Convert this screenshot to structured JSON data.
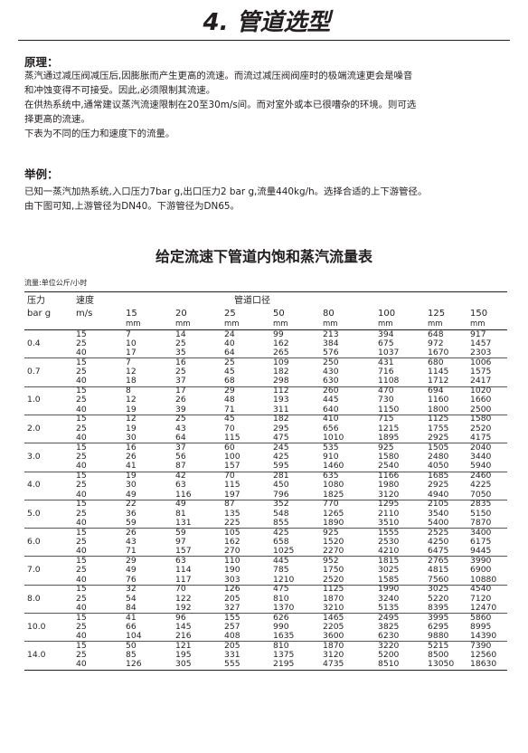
{
  "title": "4. 管道选型",
  "principle": {
    "heading": "原理：",
    "lines": [
      "蒸汽通过减压阀减压后,因膨胀而产生更高的流速。而流过减压阀阀座时的极端流速更会是噪音",
      "和冲蚀变得不可接受。因此,必须限制其流速。",
      "在供热系统中,通常建议蒸汽流速限制在20至30m/s间。而对室外或本已很嘈杂的环境。则可选",
      "择更高的流速。",
      "下表为不同的压力和速度下的流量。"
    ]
  },
  "example": {
    "heading": "举例：",
    "lines": [
      "已知一蒸汽加热系统,入口压力7bar g,出口压力2 bar g,流量440kg/h。选择合适的上下游管径。",
      "由下图可知,上游管径为DN40。下游管径为DN65。"
    ]
  },
  "table": {
    "title": "给定流速下管道内饱和蒸汽流量表",
    "unit_note": "流量:单位公斤/小时",
    "header": {
      "pressure": "压力",
      "pressure_unit": "bar g",
      "velocity": "速度",
      "velocity_unit": "m/s",
      "pipe": "管道口径",
      "sizes": [
        "15",
        "20",
        "25",
        "50",
        "80",
        "100",
        "125",
        "150"
      ],
      "size_unit": "mm"
    },
    "groups": [
      {
        "pressure": "0.4",
        "rows": [
          [
            "15",
            "7",
            "14",
            "24",
            "99",
            "213",
            "394",
            "648",
            "917"
          ],
          [
            "25",
            "10",
            "25",
            "40",
            "162",
            "384",
            "675",
            "972",
            "1457"
          ],
          [
            "40",
            "17",
            "35",
            "64",
            "265",
            "576",
            "1037",
            "1670",
            "2303"
          ]
        ]
      },
      {
        "pressure": "0.7",
        "rows": [
          [
            "15",
            "7",
            "16",
            "25",
            "109",
            "250",
            "431",
            "680",
            "1006"
          ],
          [
            "25",
            "12",
            "25",
            "45",
            "182",
            "430",
            "716",
            "1145",
            "1575"
          ],
          [
            "40",
            "18",
            "37",
            "68",
            "298",
            "630",
            "1108",
            "1712",
            "2417"
          ]
        ]
      },
      {
        "pressure": "1.0",
        "rows": [
          [
            "15",
            "8",
            "17",
            "29",
            "112",
            "260",
            "470",
            "694",
            "1020"
          ],
          [
            "25",
            "12",
            "26",
            "48",
            "193",
            "445",
            "730",
            "1160",
            "1660"
          ],
          [
            "40",
            "19",
            "39",
            "71",
            "311",
            "640",
            "1150",
            "1800",
            "2500"
          ]
        ]
      },
      {
        "pressure": "2.0",
        "rows": [
          [
            "15",
            "12",
            "25",
            "45",
            "182",
            "410",
            "715",
            "1125",
            "1580"
          ],
          [
            "25",
            "19",
            "43",
            "70",
            "295",
            "656",
            "1215",
            "1755",
            "2520"
          ],
          [
            "40",
            "30",
            "64",
            "115",
            "475",
            "1010",
            "1895",
            "2925",
            "4175"
          ]
        ]
      },
      {
        "pressure": "3.0",
        "rows": [
          [
            "15",
            "16",
            "37",
            "60",
            "245",
            "535",
            "925",
            "1505",
            "2040"
          ],
          [
            "25",
            "26",
            "56",
            "100",
            "425",
            "910",
            "1580",
            "2480",
            "3440"
          ],
          [
            "40",
            "41",
            "87",
            "157",
            "595",
            "1460",
            "2540",
            "4050",
            "5940"
          ]
        ]
      },
      {
        "pressure": "4.0",
        "rows": [
          [
            "15",
            "19",
            "42",
            "70",
            "281",
            "635",
            "1166",
            "1685",
            "2460"
          ],
          [
            "25",
            "30",
            "63",
            "115",
            "450",
            "1080",
            "1980",
            "2925",
            "4225"
          ],
          [
            "40",
            "49",
            "116",
            "197",
            "796",
            "1825",
            "3120",
            "4940",
            "7050"
          ]
        ]
      },
      {
        "pressure": "5.0",
        "rows": [
          [
            "15",
            "22",
            "49",
            "87",
            "352",
            "770",
            "1295",
            "2105",
            "2835"
          ],
          [
            "25",
            "36",
            "81",
            "135",
            "548",
            "1265",
            "2110",
            "3540",
            "5150"
          ],
          [
            "40",
            "59",
            "131",
            "225",
            "855",
            "1890",
            "3510",
            "5400",
            "7870"
          ]
        ]
      },
      {
        "pressure": "6.0",
        "rows": [
          [
            "15",
            "26",
            "59",
            "105",
            "425",
            "925",
            "1555",
            "2525",
            "3400"
          ],
          [
            "25",
            "43",
            "97",
            "162",
            "658",
            "1520",
            "2530",
            "4250",
            "6175"
          ],
          [
            "40",
            "71",
            "157",
            "270",
            "1025",
            "2270",
            "4210",
            "6475",
            "9445"
          ]
        ]
      },
      {
        "pressure": "7.0",
        "rows": [
          [
            "15",
            "29",
            "63",
            "110",
            "445",
            "952",
            "1815",
            "2765",
            "3990"
          ],
          [
            "25",
            "49",
            "114",
            "190",
            "785",
            "1750",
            "3025",
            "4815",
            "6900"
          ],
          [
            "40",
            "76",
            "117",
            "303",
            "1210",
            "2520",
            "1585",
            "7560",
            "10880"
          ]
        ]
      },
      {
        "pressure": "8.0",
        "rows": [
          [
            "15",
            "32",
            "70",
            "126",
            "475",
            "1125",
            "1990",
            "3025",
            "4540"
          ],
          [
            "25",
            "54",
            "122",
            "205",
            "810",
            "1870",
            "3240",
            "5220",
            "7120"
          ],
          [
            "40",
            "84",
            "192",
            "327",
            "1370",
            "3210",
            "5135",
            "8395",
            "12470"
          ]
        ]
      },
      {
        "pressure": "10.0",
        "rows": [
          [
            "15",
            "41",
            "96",
            "155",
            "626",
            "1465",
            "2495",
            "3995",
            "5860"
          ],
          [
            "25",
            "66",
            "145",
            "257",
            "990",
            "2205",
            "3825",
            "6295",
            "8995"
          ],
          [
            "40",
            "104",
            "216",
            "408",
            "1635",
            "3600",
            "6230",
            "9880",
            "14390"
          ]
        ]
      },
      {
        "pressure": "14.0",
        "rows": [
          [
            "15",
            "50",
            "121",
            "205",
            "810",
            "1870",
            "3220",
            "5215",
            "7390"
          ],
          [
            "25",
            "85",
            "195",
            "331",
            "1375",
            "3120",
            "5200",
            "8500",
            "12560"
          ],
          [
            "40",
            "126",
            "305",
            "555",
            "2195",
            "4735",
            "8510",
            "13050",
            "18630"
          ]
        ]
      }
    ]
  }
}
